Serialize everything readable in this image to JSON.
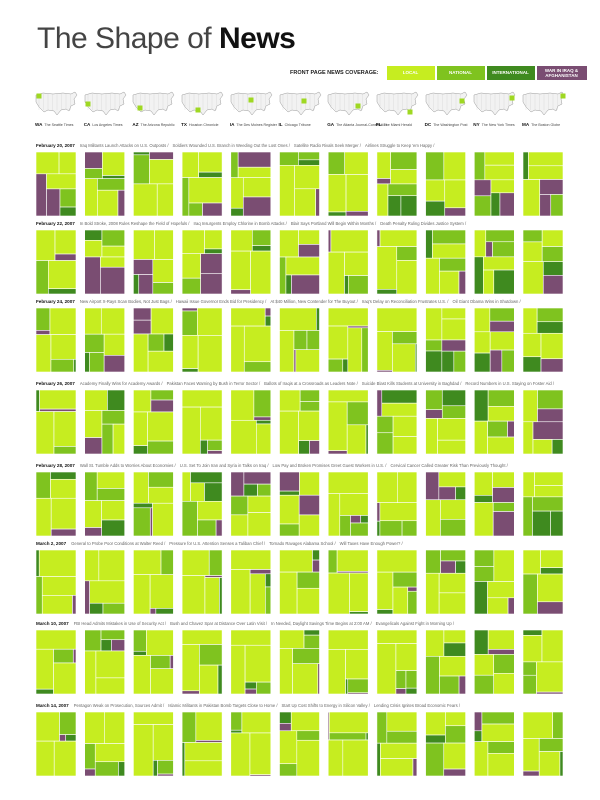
{
  "title": {
    "part1": "The Shape of ",
    "part2": "News"
  },
  "legend": {
    "label": "FRONT PAGE NEWS COVERAGE:",
    "items": [
      {
        "label": "LOCAL",
        "color": "#c6ed20"
      },
      {
        "label": "NATIONAL",
        "color": "#7fc31f"
      },
      {
        "label": "INTERNATIONAL",
        "color": "#3f8a1f"
      },
      {
        "label": "WAR IN IRAQ & AFGHANISTAN",
        "color": "#7a4d72"
      }
    ]
  },
  "papers": [
    {
      "state": "WA",
      "name": "The Seattle Times"
    },
    {
      "state": "CA",
      "name": "Los Angeles Times"
    },
    {
      "state": "AZ",
      "name": "The Arizona Republic"
    },
    {
      "state": "TX",
      "name": "Houston Chronicle"
    },
    {
      "state": "IA",
      "name": "The Des Moines Register"
    },
    {
      "state": "IL",
      "name": "Chicago Tribune"
    },
    {
      "state": "GA",
      "name": "The Atlanta Journal-Constitution"
    },
    {
      "state": "FL",
      "name": "The Miami Herald"
    },
    {
      "state": "DC",
      "name": "The Washington Post"
    },
    {
      "state": "NY",
      "name": "The New York Times"
    },
    {
      "state": "MA",
      "name": "The Boston Globe"
    }
  ],
  "chart_data": {
    "type": "treemap-small-multiples",
    "categories": [
      "Local",
      "National",
      "International",
      "War in Iraq & Afghanistan"
    ],
    "days": [
      {
        "date": "February 20, 2007",
        "headlines": [
          "Iraq Militants Launch Attacks on U.S. Outposts",
          "Soldiers Wounded U.S. Branch in Weeding Out the Lost Ones",
          "Satellite Radio Rivals Seek Merger",
          "Airlines Struggle to Keep 'em Happy"
        ],
        "shares": [
          [
            0.58,
            0.1,
            0.04,
            0.28
          ],
          [
            0.55,
            0.2,
            0.03,
            0.22
          ],
          [
            0.75,
            0.15,
            0.03,
            0.07
          ],
          [
            0.7,
            0.18,
            0.04,
            0.08
          ],
          [
            0.5,
            0.1,
            0.05,
            0.35
          ],
          [
            0.75,
            0.17,
            0.04,
            0.04
          ],
          [
            0.8,
            0.14,
            0.03,
            0.03
          ],
          [
            0.35,
            0.4,
            0.2,
            0.05
          ],
          [
            0.65,
            0.15,
            0.1,
            0.1
          ],
          [
            0.5,
            0.2,
            0.1,
            0.2
          ],
          [
            0.55,
            0.15,
            0.05,
            0.25
          ]
        ]
      },
      {
        "date": "February 22, 2007",
        "headlines": [
          "In Bold Stroke, 2008 Rules Reshape the Field of Hopefuls",
          "Iraq Insurgents Employ Chlorine in Bomb Attacks",
          "Blair Says Portland Will Begin Within Months",
          "Death Penalty Ruling Divides Justice System"
        ],
        "shares": [
          [
            0.75,
            0.15,
            0.05,
            0.05
          ],
          [
            0.45,
            0.15,
            0.05,
            0.35
          ],
          [
            0.65,
            0.15,
            0.03,
            0.17
          ],
          [
            0.6,
            0.1,
            0.05,
            0.25
          ],
          [
            0.78,
            0.12,
            0.05,
            0.05
          ],
          [
            0.5,
            0.15,
            0.05,
            0.3
          ],
          [
            0.82,
            0.12,
            0.03,
            0.03
          ],
          [
            0.85,
            0.1,
            0.03,
            0.02
          ],
          [
            0.55,
            0.3,
            0.1,
            0.05
          ],
          [
            0.4,
            0.25,
            0.3,
            0.05
          ],
          [
            0.6,
            0.2,
            0.1,
            0.1
          ]
        ]
      },
      {
        "date": "February 24, 2007",
        "headlines": [
          "New Airport X-Rays Scan Bodies, Not Just Bags",
          "Hawaii Issue Governor Ends Bid for Presidency",
          "At $40 Million, New Contender for The Buyout",
          "Iraq's Delay on Reconciliation Frustrates U.S.",
          "Oil Giant Obama Wins in Shutdown"
        ],
        "shares": [
          [
            0.75,
            0.2,
            0.02,
            0.03
          ],
          [
            0.6,
            0.2,
            0.05,
            0.15
          ],
          [
            0.55,
            0.15,
            0.05,
            0.25
          ],
          [
            0.85,
            0.1,
            0.03,
            0.02
          ],
          [
            0.85,
            0.1,
            0.03,
            0.02
          ],
          [
            0.7,
            0.25,
            0.03,
            0.02
          ],
          [
            0.75,
            0.2,
            0.03,
            0.02
          ],
          [
            0.85,
            0.12,
            0.02,
            0.01
          ],
          [
            0.45,
            0.2,
            0.25,
            0.1
          ],
          [
            0.45,
            0.2,
            0.1,
            0.25
          ],
          [
            0.5,
            0.15,
            0.2,
            0.15
          ]
        ]
      },
      {
        "date": "February 26, 2007",
        "headlines": [
          "Academy Finally Wins for Academy Awards",
          "Pakistan Faces Warning by Bush in Terror Sector",
          "Ballots of Iraqis at a Crossroads as Leaders Note",
          "Suicide Blast Kills Students at University in Baghdad",
          "Record Numbers in U.S. Staying on Foster Aid"
        ],
        "shares": [
          [
            0.8,
            0.12,
            0.03,
            0.05
          ],
          [
            0.55,
            0.2,
            0.15,
            0.1
          ],
          [
            0.65,
            0.2,
            0.05,
            0.1
          ],
          [
            0.85,
            0.1,
            0.03,
            0.02
          ],
          [
            0.8,
            0.15,
            0.03,
            0.02
          ],
          [
            0.7,
            0.2,
            0.05,
            0.05
          ],
          [
            0.82,
            0.13,
            0.03,
            0.02
          ],
          [
            0.55,
            0.25,
            0.15,
            0.05
          ],
          [
            0.6,
            0.25,
            0.1,
            0.05
          ],
          [
            0.5,
            0.3,
            0.15,
            0.05
          ],
          [
            0.45,
            0.15,
            0.05,
            0.35
          ]
        ]
      },
      {
        "date": "February 28, 2007",
        "headlines": [
          "Wall St. Tumble Adds to Worries About Economies",
          "U.S. Set To Join Iran and Syria in Talks on Iraq",
          "Low Pay and Broken Promises Greet Guest Workers in U.S.",
          "Cervical Cancer Called Greater Risk Than Previously Thought"
        ],
        "shares": [
          [
            0.75,
            0.15,
            0.05,
            0.05
          ],
          [
            0.55,
            0.25,
            0.15,
            0.05
          ],
          [
            0.65,
            0.3,
            0.03,
            0.02
          ],
          [
            0.45,
            0.3,
            0.2,
            0.05
          ],
          [
            0.55,
            0.2,
            0.05,
            0.2
          ],
          [
            0.6,
            0.1,
            0.05,
            0.25
          ],
          [
            0.75,
            0.2,
            0.03,
            0.02
          ],
          [
            0.7,
            0.25,
            0.03,
            0.02
          ],
          [
            0.6,
            0.15,
            0.05,
            0.2
          ],
          [
            0.55,
            0.1,
            0.05,
            0.3
          ],
          [
            0.4,
            0.3,
            0.3,
            0.0
          ]
        ]
      },
      {
        "date": "March 2, 2007",
        "headlines": [
          "General to Probe Poor Conditions at Walter Reed",
          "Pressure for U.S. Attention Senses a Taliban Chief",
          "Tornado Ravages Alabama School",
          "Will Taxes Have Enough Power?"
        ],
        "shares": [
          [
            0.85,
            0.1,
            0.03,
            0.02
          ],
          [
            0.75,
            0.15,
            0.05,
            0.05
          ],
          [
            0.85,
            0.1,
            0.03,
            0.02
          ],
          [
            0.8,
            0.15,
            0.03,
            0.02
          ],
          [
            0.8,
            0.1,
            0.05,
            0.05
          ],
          [
            0.75,
            0.15,
            0.05,
            0.05
          ],
          [
            0.88,
            0.08,
            0.02,
            0.02
          ],
          [
            0.75,
            0.2,
            0.03,
            0.02
          ],
          [
            0.6,
            0.25,
            0.05,
            0.1
          ],
          [
            0.55,
            0.25,
            0.15,
            0.05
          ],
          [
            0.7,
            0.15,
            0.05,
            0.1
          ]
        ]
      },
      {
        "date": "March 10, 2007",
        "headlines": [
          "FBI Head Admits Mistakes in Use of Security Act",
          "Bush and Chavez Spar at Distance Over Latin Visit",
          "In Needed, Daylight Savings Time Begins at 2:00 AM",
          "Evangelicals Against Fight in Morning Up"
        ],
        "shares": [
          [
            0.85,
            0.1,
            0.03,
            0.02
          ],
          [
            0.7,
            0.2,
            0.05,
            0.05
          ],
          [
            0.75,
            0.2,
            0.03,
            0.02
          ],
          [
            0.8,
            0.15,
            0.03,
            0.02
          ],
          [
            0.88,
            0.08,
            0.02,
            0.02
          ],
          [
            0.7,
            0.25,
            0.03,
            0.02
          ],
          [
            0.85,
            0.12,
            0.02,
            0.01
          ],
          [
            0.78,
            0.18,
            0.02,
            0.02
          ],
          [
            0.5,
            0.35,
            0.1,
            0.05
          ],
          [
            0.55,
            0.3,
            0.1,
            0.05
          ],
          [
            0.75,
            0.2,
            0.03,
            0.02
          ]
        ]
      },
      {
        "date": "March 14, 2007",
        "headlines": [
          "Pentagon Weak on Prosecution, Sources Admit",
          "Islamic Militants in Pakistan Bomb Targets Close to Home",
          "Start Up Cost Shifts to Energy in Silicon Valley",
          "Lending Crisis Ignites Broad Economic Fears"
        ],
        "shares": [
          [
            0.8,
            0.15,
            0.03,
            0.02
          ],
          [
            0.75,
            0.2,
            0.03,
            0.02
          ],
          [
            0.85,
            0.12,
            0.02,
            0.01
          ],
          [
            0.8,
            0.15,
            0.03,
            0.02
          ],
          [
            0.88,
            0.1,
            0.01,
            0.01
          ],
          [
            0.75,
            0.2,
            0.03,
            0.02
          ],
          [
            0.88,
            0.1,
            0.01,
            0.01
          ],
          [
            0.65,
            0.3,
            0.03,
            0.02
          ],
          [
            0.5,
            0.35,
            0.1,
            0.05
          ],
          [
            0.6,
            0.3,
            0.05,
            0.05
          ],
          [
            0.75,
            0.2,
            0.03,
            0.02
          ]
        ]
      }
    ]
  }
}
